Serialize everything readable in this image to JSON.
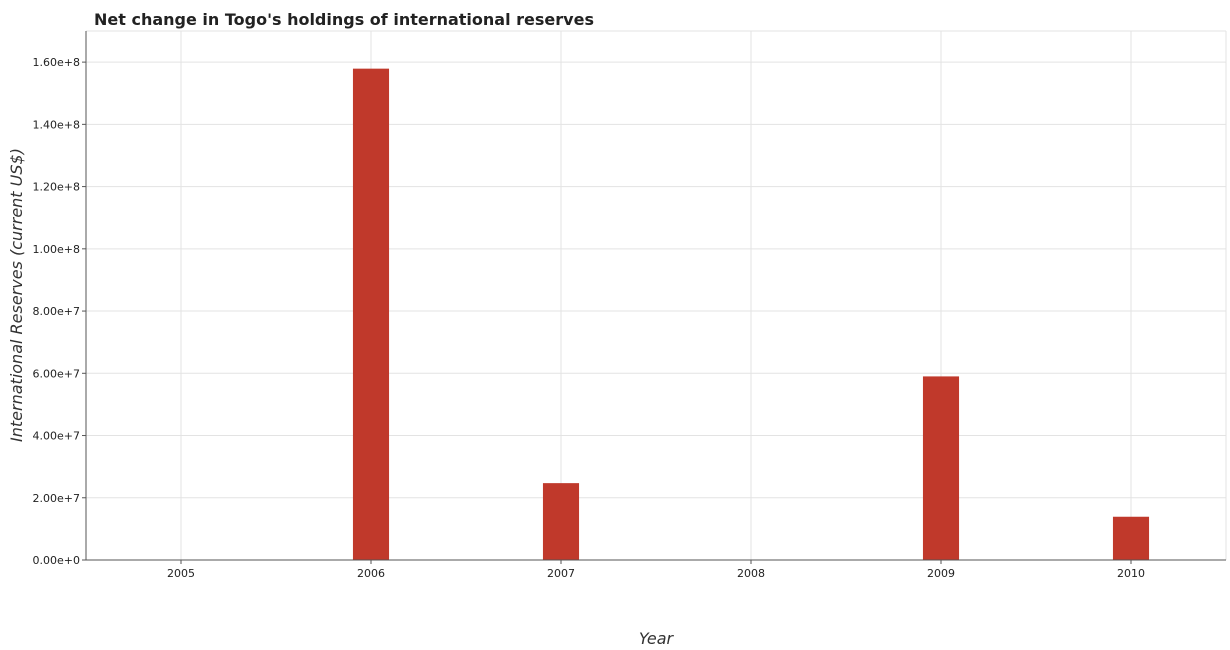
{
  "chart_data": {
    "type": "bar",
    "title": "Net change in Togo's holdings of international reserves",
    "xlabel": "Year",
    "ylabel": "International Reserves (current US$)",
    "categories": [
      "2005",
      "2006",
      "2007",
      "2008",
      "2009",
      "2010"
    ],
    "values": [
      0,
      157900000,
      24700000,
      0,
      59000000,
      13900000
    ],
    "ylim": [
      0,
      170000000
    ],
    "yticks": [
      0,
      20000000,
      40000000,
      60000000,
      80000000,
      100000000,
      120000000,
      140000000,
      160000000
    ],
    "ytick_labels": [
      "0.00e+0",
      "2.00e+7",
      "4.00e+7",
      "6.00e+7",
      "8.00e+7",
      "1.00e+8",
      "1.20e+8",
      "1.40e+8",
      "1.60e+8"
    ],
    "grid": true,
    "bar_color": "#c0392b"
  }
}
